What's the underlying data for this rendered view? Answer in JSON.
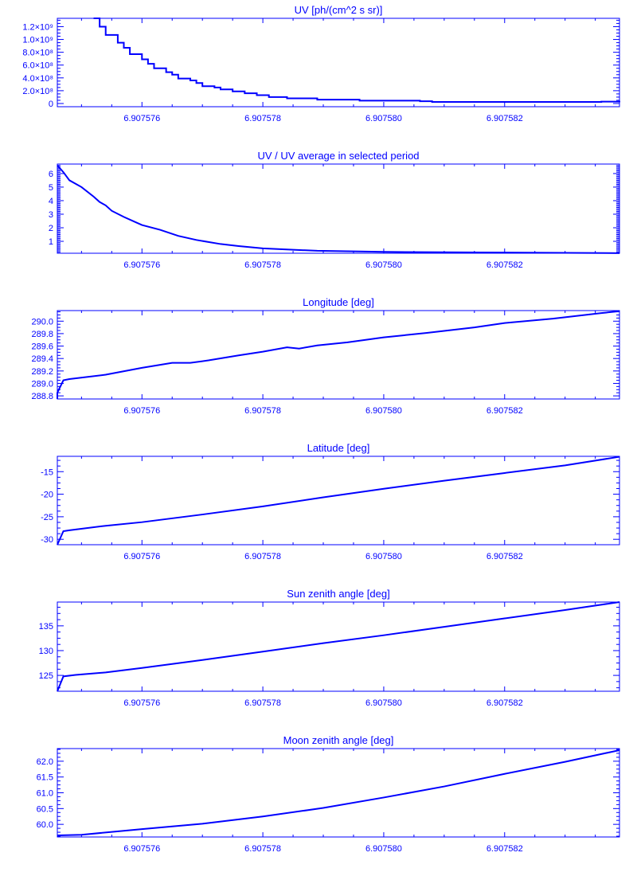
{
  "colors": {
    "line": "#0000ff",
    "axes": "#0000ff",
    "background": "#ffffff"
  },
  "chart_data": [
    {
      "type": "line",
      "step": true,
      "title": "UV [ph/(cm^2 s sr)]",
      "xlim": [
        6.9075746,
        6.9075839
      ],
      "ylim": [
        -50000000,
        1330000000
      ],
      "xticks": [
        6.907576,
        6.907578,
        6.90758,
        6.907582
      ],
      "xtick_labels": [
        "6.907576",
        "6.907578",
        "6.907580",
        "6.907582"
      ],
      "yticks": [
        0,
        200000000,
        400000000,
        600000000,
        800000000,
        1000000000,
        1200000000
      ],
      "ytick_labels": [
        "0",
        "2.0×10⁸",
        "4.0×10⁸",
        "6.0×10⁸",
        "8.0×10⁸",
        "1.0×10⁹",
        "1.2×10⁹"
      ],
      "x": [
        6.9075752,
        6.9075753,
        6.9075754,
        6.9075756,
        6.9075757,
        6.9075758,
        6.907576,
        6.9075761,
        6.9075762,
        6.9075764,
        6.9075765,
        6.9075766,
        6.9075768,
        6.9075769,
        6.907577,
        6.9075772,
        6.9075773,
        6.9075775,
        6.9075777,
        6.9075779,
        6.9075781,
        6.9075784,
        6.9075789,
        6.9075796,
        6.9075806,
        6.9075808,
        6.9075836,
        6.9075839
      ],
      "y": [
        1330000000,
        1200000000,
        1070000000,
        950000000,
        870000000,
        770000000,
        690000000,
        620000000,
        550000000,
        490000000,
        450000000,
        390000000,
        360000000,
        320000000,
        270000000,
        250000000,
        220000000,
        190000000,
        160000000,
        130000000,
        100000000,
        80000000,
        60000000,
        45000000,
        35000000,
        25000000,
        30000000,
        20000000
      ]
    },
    {
      "type": "line",
      "title": "UV / UV average in selected period",
      "xlim": [
        6.9075746,
        6.9075839
      ],
      "ylim": [
        0.12,
        6.7
      ],
      "xticks": [
        6.907576,
        6.907578,
        6.90758,
        6.907582
      ],
      "xtick_labels": [
        "6.907576",
        "6.907578",
        "6.907580",
        "6.907582"
      ],
      "yticks": [
        1,
        2,
        3,
        4,
        5,
        6
      ],
      "ytick_labels": [
        "1",
        "2",
        "3",
        "4",
        "5",
        "6"
      ],
      "x": [
        6.9075746,
        6.9075747,
        6.9075748,
        6.907575,
        6.9075752,
        6.9075753,
        6.9075754,
        6.9075755,
        6.9075757,
        6.9075759,
        6.907576,
        6.9075763,
        6.9075766,
        6.9075769,
        6.9075773,
        6.9075776,
        6.907578,
        6.9075789,
        6.90758,
        6.9075816,
        6.9075839
      ],
      "y": [
        6.6,
        6.1,
        5.5,
        5.0,
        4.3,
        3.9,
        3.65,
        3.25,
        2.8,
        2.4,
        2.2,
        1.85,
        1.4,
        1.1,
        0.8,
        0.65,
        0.48,
        0.3,
        0.22,
        0.18,
        0.13
      ]
    },
    {
      "type": "line",
      "title": "Longitude [deg]",
      "xlim": [
        6.9075746,
        6.9075839
      ],
      "ylim": [
        288.75,
        290.17
      ],
      "xticks": [
        6.907576,
        6.907578,
        6.90758,
        6.907582
      ],
      "xtick_labels": [
        "6.907576",
        "6.907578",
        "6.907580",
        "6.907582"
      ],
      "yticks": [
        288.8,
        289.0,
        289.2,
        289.4,
        289.6,
        289.8,
        290.0
      ],
      "ytick_labels": [
        "288.8",
        "289.0",
        "289.2",
        "289.4",
        "289.6",
        "289.8",
        "290.0"
      ],
      "x": [
        6.9075746,
        6.9075746,
        6.9075747,
        6.9075748,
        6.9075754,
        6.907576,
        6.9075765,
        6.9075768,
        6.9075771,
        6.9075776,
        6.907578,
        6.9075784,
        6.9075786,
        6.9075789,
        6.9075794,
        6.90758,
        6.9075807,
        6.9075815,
        6.907582,
        6.9075828,
        6.9075836,
        6.9075839
      ],
      "y": [
        288.75,
        288.85,
        289.05,
        289.07,
        289.14,
        289.25,
        289.33,
        289.33,
        289.37,
        289.45,
        289.51,
        289.58,
        289.56,
        289.61,
        289.66,
        289.74,
        289.81,
        289.9,
        289.97,
        290.04,
        290.13,
        290.16
      ]
    },
    {
      "type": "line",
      "title": "Latitude [deg]",
      "xlim": [
        6.9075746,
        6.9075839
      ],
      "ylim": [
        -31.2,
        -11.6
      ],
      "xticks": [
        6.907576,
        6.907578,
        6.90758,
        6.907582
      ],
      "xtick_labels": [
        "6.907576",
        "6.907578",
        "6.907580",
        "6.907582"
      ],
      "yticks": [
        -30,
        -25,
        -20,
        -15
      ],
      "ytick_labels": [
        "-30",
        "-25",
        "-20",
        "-15"
      ],
      "x": [
        6.9075746,
        6.9075747,
        6.9075748,
        6.9075754,
        6.907576,
        6.907577,
        6.907578,
        6.907579,
        6.90758,
        6.907581,
        6.907582,
        6.907583,
        6.9075839
      ],
      "y": [
        -31.2,
        -28.2,
        -28.0,
        -27.0,
        -26.2,
        -24.5,
        -22.7,
        -20.7,
        -18.8,
        -17.0,
        -15.3,
        -13.6,
        -11.7
      ]
    },
    {
      "type": "line",
      "title": "Sun zenith angle [deg]",
      "xlim": [
        6.9075746,
        6.9075839
      ],
      "ylim": [
        121.8,
        139.8
      ],
      "xticks": [
        6.907576,
        6.907578,
        6.90758,
        6.907582
      ],
      "xtick_labels": [
        "6.907576",
        "6.907578",
        "6.907580",
        "6.907582"
      ],
      "yticks": [
        125,
        130,
        135
      ],
      "ytick_labels": [
        "125",
        "130",
        "135"
      ],
      "x": [
        6.9075746,
        6.9075747,
        6.9075749,
        6.9075754,
        6.907576,
        6.907577,
        6.907578,
        6.907579,
        6.90758,
        6.907581,
        6.907582,
        6.907583,
        6.9075839
      ],
      "y": [
        121.8,
        124.8,
        125.1,
        125.6,
        126.5,
        128.1,
        129.8,
        131.5,
        133.1,
        134.8,
        136.5,
        138.2,
        139.8
      ]
    },
    {
      "type": "line",
      "title": "Moon zenith angle [deg]",
      "xlim": [
        6.9075746,
        6.9075839
      ],
      "ylim": [
        59.6,
        62.4
      ],
      "xticks": [
        6.907576,
        6.907578,
        6.90758,
        6.907582
      ],
      "xtick_labels": [
        "6.907576",
        "6.907578",
        "6.907580",
        "6.907582"
      ],
      "yticks": [
        60.0,
        60.5,
        61.0,
        61.5,
        62.0
      ],
      "ytick_labels": [
        "60.0",
        "60.5",
        "61.0",
        "61.5",
        "62.0"
      ],
      "x": [
        6.9075746,
        6.907575,
        6.907576,
        6.907577,
        6.907578,
        6.907579,
        6.90758,
        6.907581,
        6.907582,
        6.907583,
        6.9075839
      ],
      "y": [
        59.65,
        59.67,
        59.85,
        60.02,
        60.25,
        60.52,
        60.85,
        61.2,
        61.6,
        61.98,
        62.35
      ]
    }
  ]
}
